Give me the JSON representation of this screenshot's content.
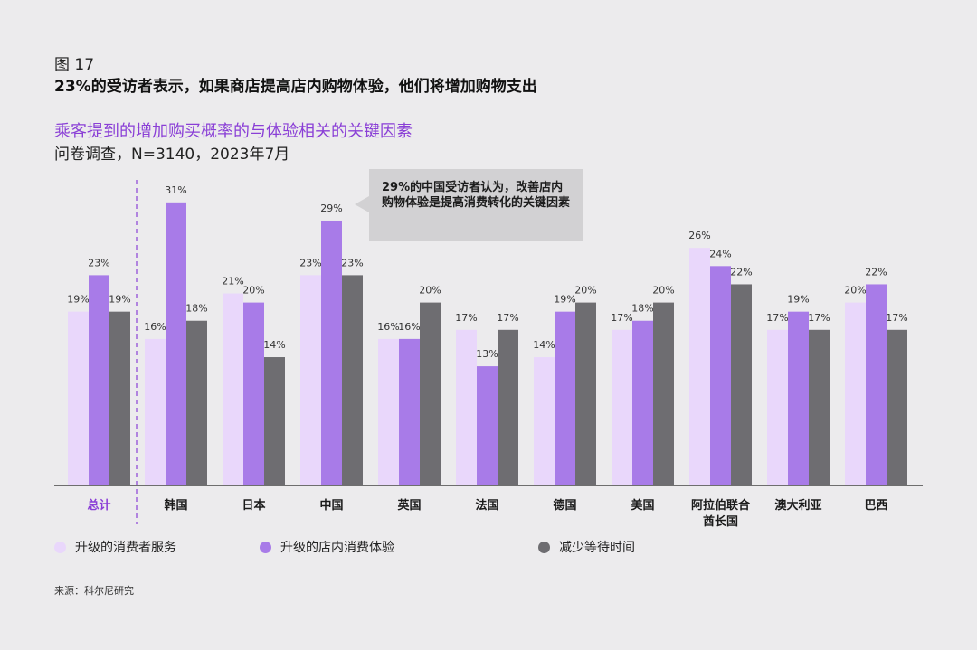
{
  "figure_label": "图 17",
  "headline": "23%的受访者表示，如果商店提高店内购物体验，他们将增加购物支出",
  "subtitle": "乘客提到的增加购买概率的与体验相关的关键因素",
  "survey_info": "问卷调查，N=3140，2023年7月",
  "callout": "29%的中国受访者认为，改善店内购物体验是提高消费转化的关键因素",
  "source": "来源：科尔尼研究",
  "colors": {
    "accent": "#8a3fd6",
    "series": [
      "#e9d7fb",
      "#a87be8",
      "#6e6d71"
    ],
    "total_label": "#8a3fd6"
  },
  "chart_data": {
    "type": "bar",
    "categories": [
      "总计",
      "韩国",
      "日本",
      "中国",
      "英国",
      "法国",
      "德国",
      "美国",
      "阿拉伯联合酋长国",
      "澳大利亚",
      "巴西"
    ],
    "category_lines": [
      [
        "总计"
      ],
      [
        "韩国"
      ],
      [
        "日本"
      ],
      [
        "中国"
      ],
      [
        "英国"
      ],
      [
        "法国"
      ],
      [
        "德国"
      ],
      [
        "美国"
      ],
      [
        "阿拉伯联合",
        "酋长国"
      ],
      [
        "澳大利亚"
      ],
      [
        "巴西"
      ]
    ],
    "series": [
      {
        "name": "升级的消费者服务",
        "values": [
          19,
          16,
          21,
          23,
          16,
          17,
          14,
          17,
          26,
          17,
          20
        ]
      },
      {
        "name": "升级的店内消费体验",
        "values": [
          23,
          31,
          20,
          29,
          16,
          13,
          19,
          18,
          24,
          19,
          22
        ]
      },
      {
        "name": "减少等待时间",
        "values": [
          19,
          18,
          14,
          23,
          20,
          17,
          20,
          20,
          22,
          17,
          17
        ]
      }
    ],
    "value_suffix": "%",
    "ylim": [
      0,
      33
    ],
    "grid": false,
    "legend_position": "bottom"
  }
}
